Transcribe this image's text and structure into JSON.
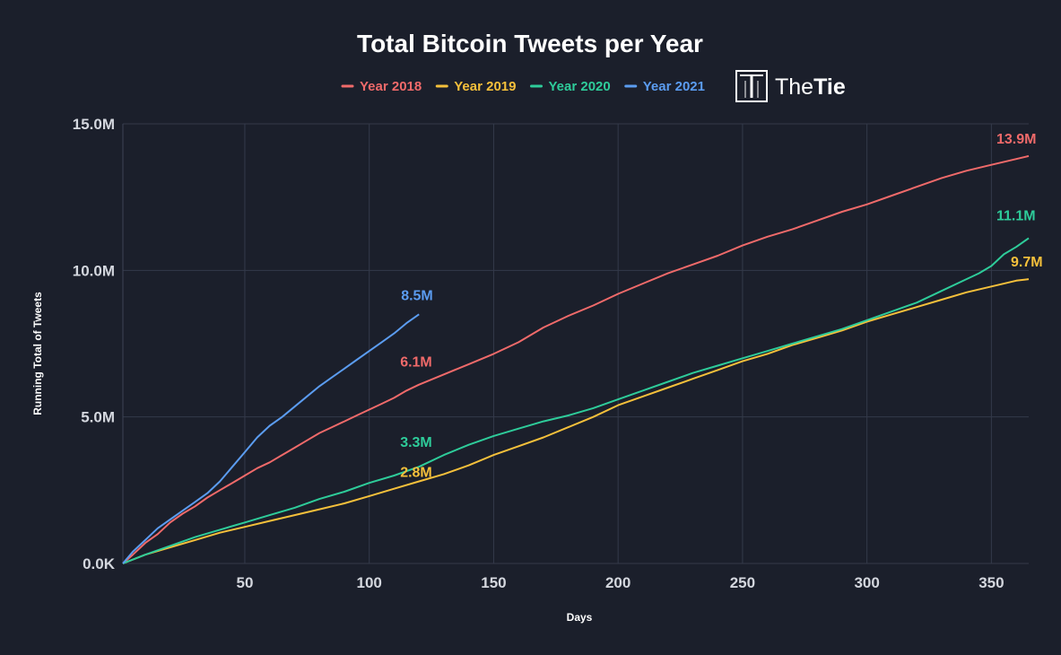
{
  "chart_data": {
    "type": "line",
    "title": "Total Bitcoin Tweets per Year",
    "xlabel": "Days",
    "ylabel": "Running Total of Tweets",
    "xlim": [
      1,
      365
    ],
    "ylim": [
      0,
      15000000
    ],
    "x_ticks": [
      {
        "value": 50,
        "label": "50"
      },
      {
        "value": 100,
        "label": "100"
      },
      {
        "value": 150,
        "label": "150"
      },
      {
        "value": 200,
        "label": "200"
      },
      {
        "value": 250,
        "label": "250"
      },
      {
        "value": 300,
        "label": "300"
      },
      {
        "value": 350,
        "label": "350"
      }
    ],
    "y_ticks": [
      {
        "value": 0,
        "label": "0.0K"
      },
      {
        "value": 5000000,
        "label": "5.0M"
      },
      {
        "value": 10000000,
        "label": "10.0M"
      },
      {
        "value": 15000000,
        "label": "15.0M"
      }
    ],
    "grid": true,
    "legend_position": "top",
    "series": [
      {
        "name": "Year 2018",
        "color": "#f06a6a",
        "x": [
          1,
          5,
          10,
          15,
          20,
          25,
          30,
          35,
          40,
          45,
          50,
          55,
          60,
          65,
          70,
          75,
          80,
          85,
          90,
          95,
          100,
          105,
          110,
          115,
          120,
          130,
          140,
          150,
          160,
          170,
          180,
          190,
          200,
          210,
          220,
          230,
          240,
          250,
          260,
          270,
          280,
          290,
          300,
          310,
          320,
          330,
          340,
          350,
          360,
          365
        ],
        "y": [
          0,
          300000,
          700000,
          1000000,
          1400000,
          1700000,
          1950000,
          2250000,
          2500000,
          2750000,
          3000000,
          3250000,
          3450000,
          3700000,
          3950000,
          4200000,
          4450000,
          4650000,
          4850000,
          5050000,
          5250000,
          5450000,
          5650000,
          5900000,
          6100000,
          6450000,
          6800000,
          7150000,
          7550000,
          8050000,
          8450000,
          8800000,
          9200000,
          9550000,
          9900000,
          10200000,
          10500000,
          10850000,
          11150000,
          11400000,
          11700000,
          12000000,
          12250000,
          12550000,
          12850000,
          13150000,
          13400000,
          13600000,
          13800000,
          13900000
        ],
        "end_label": "13.9M",
        "mid_label": "6.1M",
        "mid_x": 120
      },
      {
        "name": "Year 2019",
        "color": "#f5c03b",
        "x": [
          1,
          10,
          20,
          30,
          40,
          50,
          60,
          70,
          80,
          90,
          100,
          110,
          120,
          130,
          140,
          150,
          160,
          170,
          180,
          190,
          200,
          210,
          220,
          230,
          240,
          250,
          260,
          270,
          280,
          290,
          300,
          310,
          320,
          330,
          340,
          350,
          360,
          365
        ],
        "y": [
          0,
          300000,
          550000,
          800000,
          1050000,
          1250000,
          1450000,
          1650000,
          1850000,
          2050000,
          2300000,
          2550000,
          2800000,
          3050000,
          3350000,
          3700000,
          4000000,
          4300000,
          4650000,
          5000000,
          5400000,
          5700000,
          6000000,
          6300000,
          6600000,
          6900000,
          7150000,
          7450000,
          7700000,
          7950000,
          8250000,
          8500000,
          8750000,
          9000000,
          9250000,
          9450000,
          9650000,
          9700000
        ],
        "end_label": "9.7M",
        "mid_label": "2.8M",
        "mid_x": 120
      },
      {
        "name": "Year 2020",
        "color": "#2ecc9a",
        "x": [
          1,
          10,
          20,
          30,
          40,
          50,
          60,
          70,
          80,
          90,
          100,
          110,
          120,
          130,
          140,
          150,
          160,
          170,
          180,
          190,
          200,
          210,
          220,
          230,
          240,
          250,
          260,
          270,
          280,
          290,
          300,
          310,
          320,
          330,
          340,
          345,
          350,
          355,
          360,
          365
        ],
        "y": [
          0,
          300000,
          600000,
          900000,
          1150000,
          1400000,
          1650000,
          1900000,
          2200000,
          2450000,
          2750000,
          3000000,
          3300000,
          3700000,
          4050000,
          4350000,
          4600000,
          4850000,
          5050000,
          5300000,
          5600000,
          5900000,
          6200000,
          6500000,
          6750000,
          7000000,
          7250000,
          7500000,
          7750000,
          8000000,
          8300000,
          8600000,
          8900000,
          9300000,
          9700000,
          9900000,
          10150000,
          10550000,
          10800000,
          11100000
        ],
        "end_label": "11.1M",
        "mid_label": "3.3M",
        "mid_x": 120
      },
      {
        "name": "Year 2021",
        "color": "#5b9cf0",
        "x": [
          1,
          5,
          10,
          15,
          20,
          25,
          30,
          35,
          40,
          45,
          50,
          55,
          60,
          65,
          70,
          75,
          80,
          85,
          90,
          95,
          100,
          105,
          110,
          115,
          120
        ],
        "y": [
          0,
          400000,
          800000,
          1200000,
          1500000,
          1800000,
          2100000,
          2400000,
          2800000,
          3300000,
          3800000,
          4300000,
          4700000,
          5000000,
          5350000,
          5700000,
          6050000,
          6350000,
          6650000,
          6950000,
          7250000,
          7550000,
          7850000,
          8200000,
          8500000
        ],
        "end_label": "8.5M"
      }
    ]
  },
  "brand": {
    "part1": "The",
    "part2": "Tie",
    "icon": "thetie-logo-icon"
  },
  "colors": {
    "background": "#1b1f2b",
    "grid": "#343a4a",
    "tick_text": "#d4d7de"
  }
}
